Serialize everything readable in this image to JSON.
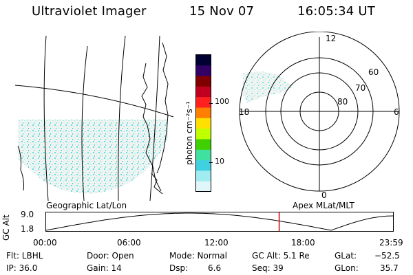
{
  "header": {
    "instrument": "Ultraviolet Imager",
    "date": "15 Nov 07",
    "time": "16:05:34 UT"
  },
  "colorbar": {
    "label": "photon cm⁻²s⁻¹",
    "ticks": [
      "100",
      "10"
    ],
    "colors": [
      "#000033",
      "#330066",
      "#800000",
      "#c00020",
      "#ff2020",
      "#ff8000",
      "#ffe000",
      "#c0ff00",
      "#40d000",
      "#40e0a0",
      "#40d0e0",
      "#a0ecf0",
      "#e0f6f8"
    ]
  },
  "polar": {
    "mlt_labels": {
      "top": "12",
      "left": "18",
      "right": "6",
      "bottom": "0"
    },
    "lat_labels": [
      "60",
      "70",
      "80"
    ]
  },
  "map_labels": {
    "left": "Geographic Lat/Lon",
    "right": "Apex MLat/MLT"
  },
  "altitude_plot": {
    "ylabel": "GC Alt",
    "yticks": [
      "9.0",
      "1.8"
    ],
    "xticks": [
      "00:00",
      "06:00",
      "12:00",
      "18:00",
      "23:59"
    ],
    "current_time_marker_hours": 16.09,
    "marker_color": "#cc0000"
  },
  "info": {
    "filter": "Flt: LBHL",
    "ip": "IP: 36.0",
    "door": "Door: Open",
    "gain": "Gain: 14",
    "mode": "Mode: Normal",
    "dsp_label": "Dsp:",
    "dsp_value": "6.6",
    "gc_alt": "GC Alt: 5.1 Re",
    "seq": "Seq: 39",
    "glat_label": "GLat:",
    "glat_value": "−52.5",
    "glon_label": "GLon:",
    "glon_value": "35.7"
  }
}
